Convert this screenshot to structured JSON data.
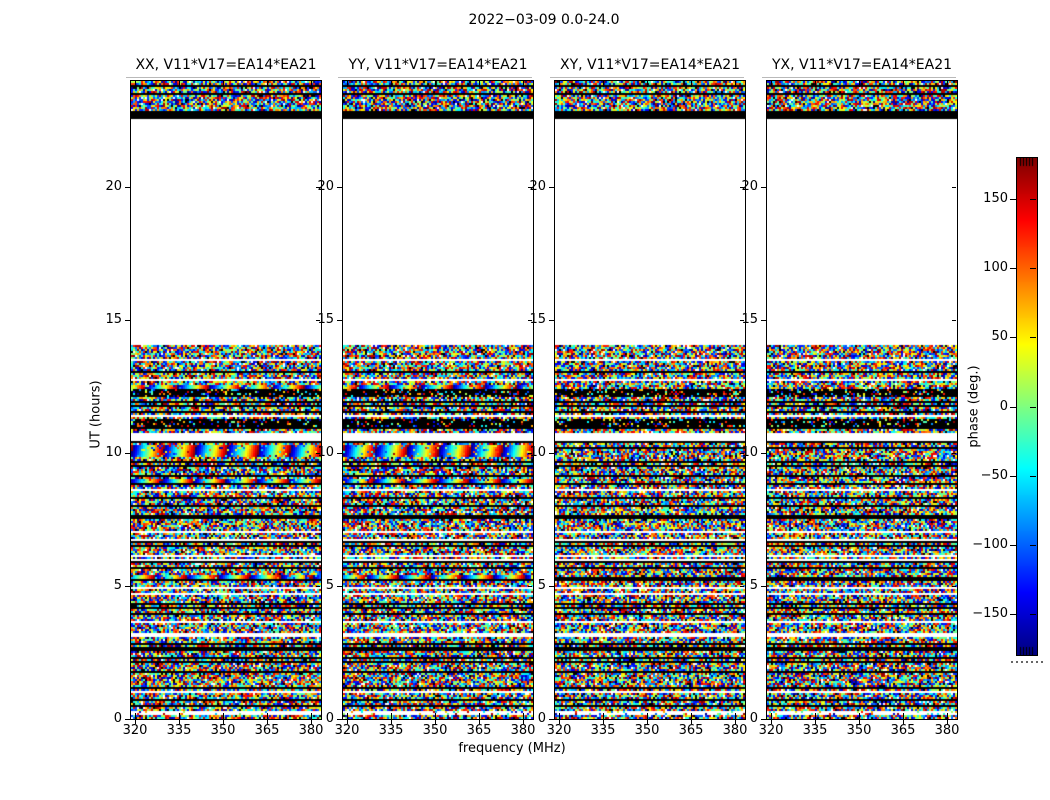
{
  "figure": {
    "title": "2022-03-09 0.0-24.0",
    "xlabel": "frequency (MHz)",
    "ylabel": "UT (hours)",
    "colorbar_label": "phase (deg.)"
  },
  "chart_data": {
    "type": "heatmap",
    "title": "2022-03-09 0.0-24.0",
    "baseline": "V11*V17=EA14*EA21",
    "panels": [
      {
        "id": "xx",
        "polarization": "XX",
        "title": "XX, V11*V17=EA14*EA21",
        "coherent_stripes": true,
        "seed": 11
      },
      {
        "id": "yy",
        "polarization": "YY",
        "title": "YY, V11*V17=EA14*EA21",
        "coherent_stripes": true,
        "seed": 23
      },
      {
        "id": "xy",
        "polarization": "XY",
        "title": "XY, V11*V17=EA14*EA21",
        "coherent_stripes": false,
        "seed": 37
      },
      {
        "id": "yx",
        "polarization": "YX",
        "title": "YX, V11*V17=EA14*EA21",
        "coherent_stripes": false,
        "seed": 51
      }
    ],
    "x_axis": {
      "label": "frequency (MHz)",
      "unit": "MHz",
      "ticks": [
        320,
        335,
        350,
        365,
        380
      ],
      "range": [
        318.5,
        383.5
      ]
    },
    "y_axis": {
      "label": "UT (hours)",
      "unit": "hours",
      "ticks": [
        0,
        5,
        10,
        15,
        20
      ],
      "range": [
        0,
        24
      ]
    },
    "colorbar": {
      "label": "phase (deg.)",
      "ticks": [
        150,
        100,
        50,
        0,
        -50,
        -100,
        -150
      ],
      "range": [
        -180,
        180
      ],
      "colormap": "jet"
    },
    "time_bands": [
      {
        "from": 24.0,
        "to": 23.85,
        "type": "noise"
      },
      {
        "from": 23.85,
        "to": 23.8,
        "type": "black"
      },
      {
        "from": 23.8,
        "to": 23.55,
        "type": "noise"
      },
      {
        "from": 23.55,
        "to": 23.5,
        "type": "black"
      },
      {
        "from": 23.5,
        "to": 23.28,
        "type": "noise"
      },
      {
        "from": 23.28,
        "to": 23.22,
        "type": "black"
      },
      {
        "from": 23.22,
        "to": 22.85,
        "type": "noise"
      },
      {
        "from": 22.85,
        "to": 22.6,
        "type": "black"
      },
      {
        "from": 22.6,
        "to": 14.08,
        "type": "white"
      },
      {
        "from": 14.08,
        "to": 13.8,
        "type": "noise"
      },
      {
        "from": 13.8,
        "to": 13.74,
        "type": "white"
      },
      {
        "from": 13.74,
        "to": 12.56,
        "type": "noise"
      },
      {
        "from": 12.56,
        "to": 12.38,
        "type": "stripes"
      },
      {
        "from": 12.38,
        "to": 12.11,
        "type": "black_specks"
      },
      {
        "from": 12.11,
        "to": 11.81,
        "type": "noise"
      },
      {
        "from": 11.81,
        "to": 11.74,
        "type": "black"
      },
      {
        "from": 11.74,
        "to": 11.25,
        "type": "noise"
      },
      {
        "from": 11.25,
        "to": 10.98,
        "type": "black_specks"
      },
      {
        "from": 10.98,
        "to": 10.76,
        "type": "noise"
      },
      {
        "from": 10.76,
        "to": 10.49,
        "type": "white"
      },
      {
        "from": 10.49,
        "to": 10.28,
        "type": "noise"
      },
      {
        "from": 10.28,
        "to": 9.86,
        "type": "stripes"
      },
      {
        "from": 9.86,
        "to": 9.55,
        "type": "noise"
      },
      {
        "from": 9.55,
        "to": 9.47,
        "type": "black"
      },
      {
        "from": 9.47,
        "to": 9.05,
        "type": "noise"
      },
      {
        "from": 9.05,
        "to": 8.9,
        "type": "stripes"
      },
      {
        "from": 8.9,
        "to": 8.62,
        "type": "noise"
      },
      {
        "from": 8.62,
        "to": 8.54,
        "type": "white"
      },
      {
        "from": 8.54,
        "to": 7.65,
        "type": "noise"
      },
      {
        "from": 7.65,
        "to": 7.55,
        "type": "black"
      },
      {
        "from": 7.55,
        "to": 6.75,
        "type": "noise"
      },
      {
        "from": 6.75,
        "to": 6.67,
        "type": "white"
      },
      {
        "from": 6.67,
        "to": 5.95,
        "type": "noise"
      },
      {
        "from": 5.95,
        "to": 5.85,
        "type": "black"
      },
      {
        "from": 5.85,
        "to": 5.38,
        "type": "noise"
      },
      {
        "from": 5.38,
        "to": 5.28,
        "type": "stripes"
      },
      {
        "from": 5.28,
        "to": 4.95,
        "type": "noise"
      },
      {
        "from": 4.95,
        "to": 4.87,
        "type": "white"
      },
      {
        "from": 4.87,
        "to": 4.22,
        "type": "noise"
      },
      {
        "from": 4.22,
        "to": 4.12,
        "type": "black"
      },
      {
        "from": 4.12,
        "to": 3.25,
        "type": "noise"
      },
      {
        "from": 3.25,
        "to": 3.15,
        "type": "white"
      },
      {
        "from": 3.15,
        "to": 2.35,
        "type": "noise"
      },
      {
        "from": 2.35,
        "to": 2.25,
        "type": "black"
      },
      {
        "from": 2.25,
        "to": 1.05,
        "type": "noise"
      },
      {
        "from": 1.05,
        "to": 0.97,
        "type": "white"
      },
      {
        "from": 0.97,
        "to": 0.32,
        "type": "noise"
      },
      {
        "from": 0.32,
        "to": 0.14,
        "type": "white_specks"
      },
      {
        "from": 0.14,
        "to": 0.0,
        "type": "noise"
      }
    ],
    "noise_lines": {
      "seed": 42,
      "min_gap_hours": 0.15,
      "max_gap_hours": 0.6,
      "black_fraction": 0.8
    }
  }
}
